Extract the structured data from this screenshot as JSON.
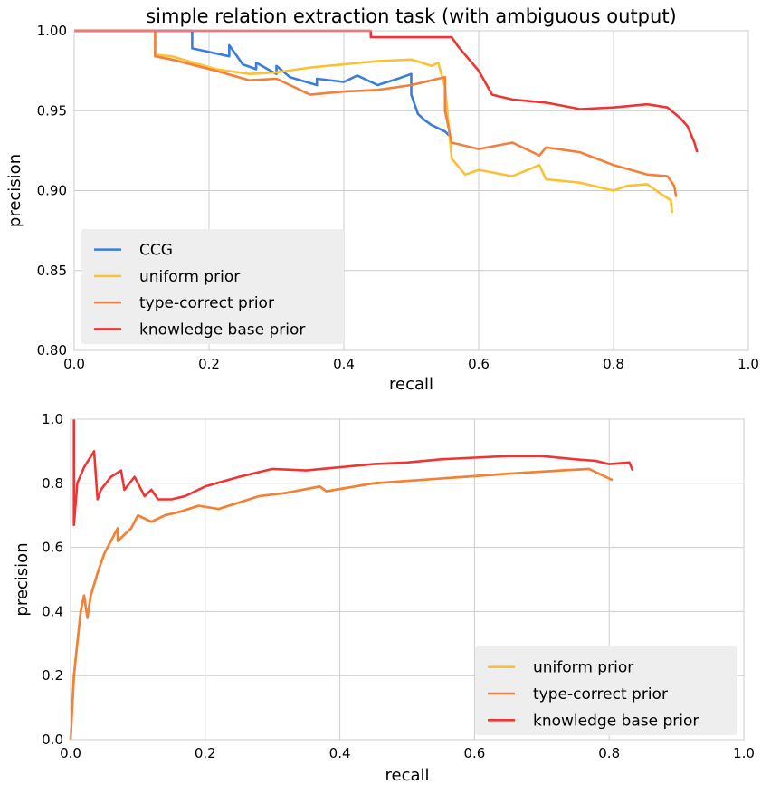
{
  "chart_data": [
    {
      "type": "line",
      "title": "simple relation extraction task (with ambiguous output)",
      "xlabel": "recall",
      "ylabel": "precision",
      "xlim": [
        0,
        1
      ],
      "ylim": [
        0.8,
        1.0
      ],
      "xticks": [
        "0.0",
        "0.2",
        "0.4",
        "0.6",
        "0.8",
        "1.0"
      ],
      "yticks": [
        "0.80",
        "0.85",
        "0.90",
        "0.95",
        "1.00"
      ],
      "grid": true,
      "legend_position": "lower-left",
      "series": [
        {
          "name": "CCG",
          "color": "#3b7dd8",
          "x": [
            0.0,
            0.175,
            0.175,
            0.23,
            0.23,
            0.25,
            0.27,
            0.27,
            0.3,
            0.3,
            0.32,
            0.36,
            0.36,
            0.4,
            0.42,
            0.45,
            0.48,
            0.5,
            0.5,
            0.51,
            0.52,
            0.53,
            0.55,
            0.56
          ],
          "y": [
            1.0,
            1.0,
            0.989,
            0.984,
            0.991,
            0.979,
            0.976,
            0.98,
            0.973,
            0.978,
            0.971,
            0.966,
            0.97,
            0.968,
            0.972,
            0.966,
            0.97,
            0.973,
            0.96,
            0.948,
            0.944,
            0.941,
            0.937,
            0.933
          ]
        },
        {
          "name": "uniform prior",
          "color": "#fbc134",
          "x": [
            0.0,
            0.12,
            0.12,
            0.145,
            0.21,
            0.26,
            0.3,
            0.35,
            0.4,
            0.45,
            0.5,
            0.53,
            0.54,
            0.55,
            0.56,
            0.58,
            0.6,
            0.65,
            0.69,
            0.7,
            0.75,
            0.8,
            0.82,
            0.85,
            0.87,
            0.885,
            0.887
          ],
          "y": [
            1.0,
            1.0,
            0.985,
            0.984,
            0.976,
            0.973,
            0.974,
            0.977,
            0.979,
            0.981,
            0.982,
            0.978,
            0.98,
            0.965,
            0.92,
            0.91,
            0.913,
            0.909,
            0.916,
            0.907,
            0.905,
            0.9,
            0.903,
            0.904,
            0.898,
            0.894,
            0.886
          ]
        },
        {
          "name": "type-correct prior",
          "color": "#f3803a",
          "x": [
            0.0,
            0.12,
            0.12,
            0.145,
            0.21,
            0.26,
            0.3,
            0.35,
            0.4,
            0.45,
            0.5,
            0.55,
            0.55,
            0.56,
            0.6,
            0.65,
            0.69,
            0.7,
            0.75,
            0.8,
            0.85,
            0.88,
            0.89,
            0.893
          ],
          "y": [
            1.0,
            1.0,
            0.984,
            0.982,
            0.975,
            0.969,
            0.97,
            0.96,
            0.962,
            0.963,
            0.966,
            0.971,
            0.95,
            0.93,
            0.926,
            0.93,
            0.922,
            0.927,
            0.924,
            0.916,
            0.91,
            0.909,
            0.903,
            0.896
          ]
        },
        {
          "name": "knowledge base prior",
          "color": "#ef3434",
          "x": [
            0.0,
            0.44,
            0.44,
            0.56,
            0.57,
            0.6,
            0.62,
            0.65,
            0.7,
            0.75,
            0.8,
            0.85,
            0.88,
            0.9,
            0.91,
            0.92,
            0.924
          ],
          "y": [
            1.0,
            1.0,
            0.996,
            0.996,
            0.99,
            0.975,
            0.96,
            0.957,
            0.955,
            0.951,
            0.952,
            0.954,
            0.952,
            0.945,
            0.94,
            0.93,
            0.924
          ]
        }
      ]
    },
    {
      "type": "line",
      "title": "",
      "xlabel": "recall",
      "ylabel": "precision",
      "xlim": [
        0,
        1
      ],
      "ylim": [
        0,
        1
      ],
      "xticks": [
        "0.0",
        "0.2",
        "0.4",
        "0.6",
        "0.8",
        "1.0"
      ],
      "yticks": [
        "0.0",
        "0.2",
        "0.4",
        "0.6",
        "0.8",
        "1.0"
      ],
      "grid": true,
      "legend_position": "lower-right",
      "series": [
        {
          "name": "uniform prior",
          "color": "#fbc134",
          "x": [
            0.0,
            0.005,
            0.01,
            0.015,
            0.02,
            0.025,
            0.03,
            0.04,
            0.05,
            0.06,
            0.07,
            0.07,
            0.09,
            0.1,
            0.12,
            0.14,
            0.16,
            0.19,
            0.22,
            0.28,
            0.32,
            0.37,
            0.38,
            0.45,
            0.55,
            0.65,
            0.73,
            0.77,
            0.79,
            0.805
          ],
          "y": [
            0.0,
            0.2,
            0.3,
            0.4,
            0.45,
            0.38,
            0.45,
            0.52,
            0.58,
            0.62,
            0.66,
            0.62,
            0.66,
            0.7,
            0.68,
            0.7,
            0.71,
            0.73,
            0.72,
            0.76,
            0.77,
            0.79,
            0.775,
            0.8,
            0.815,
            0.83,
            0.84,
            0.845,
            0.825,
            0.81
          ]
        },
        {
          "name": "type-correct prior",
          "color": "#f3803a",
          "x": [
            0.0,
            0.005,
            0.01,
            0.015,
            0.02,
            0.025,
            0.03,
            0.04,
            0.05,
            0.06,
            0.07,
            0.07,
            0.09,
            0.1,
            0.12,
            0.14,
            0.16,
            0.19,
            0.22,
            0.28,
            0.32,
            0.37,
            0.38,
            0.45,
            0.55,
            0.65,
            0.73,
            0.77,
            0.79,
            0.805
          ],
          "y": [
            0.0,
            0.2,
            0.3,
            0.4,
            0.45,
            0.38,
            0.45,
            0.52,
            0.58,
            0.62,
            0.66,
            0.62,
            0.66,
            0.7,
            0.68,
            0.7,
            0.71,
            0.73,
            0.72,
            0.76,
            0.77,
            0.79,
            0.775,
            0.8,
            0.815,
            0.83,
            0.84,
            0.845,
            0.825,
            0.81
          ]
        },
        {
          "name": "knowledge base prior",
          "color": "#ef3434",
          "x": [
            0.005,
            0.005,
            0.01,
            0.02,
            0.035,
            0.04,
            0.045,
            0.06,
            0.075,
            0.08,
            0.095,
            0.1,
            0.11,
            0.12,
            0.13,
            0.15,
            0.17,
            0.2,
            0.25,
            0.3,
            0.35,
            0.4,
            0.45,
            0.5,
            0.55,
            0.6,
            0.65,
            0.7,
            0.75,
            0.78,
            0.8,
            0.83,
            0.835
          ],
          "y": [
            1.0,
            0.67,
            0.8,
            0.85,
            0.9,
            0.75,
            0.78,
            0.82,
            0.84,
            0.78,
            0.82,
            0.8,
            0.76,
            0.78,
            0.75,
            0.75,
            0.76,
            0.79,
            0.82,
            0.845,
            0.84,
            0.85,
            0.86,
            0.865,
            0.875,
            0.88,
            0.885,
            0.885,
            0.875,
            0.87,
            0.86,
            0.865,
            0.84
          ]
        }
      ]
    }
  ]
}
